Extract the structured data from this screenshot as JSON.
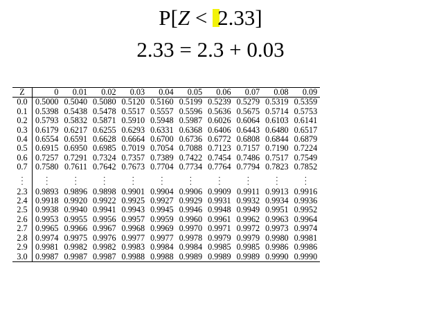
{
  "formula_line1": {
    "prefix": "P[",
    "variable": "Z",
    "operator": " < ",
    "value": "2.33",
    "suffix": "]"
  },
  "formula_line2": "2.33 = 2.3 + 0.03",
  "highlight_color": "#f2f20a",
  "table": {
    "header": [
      "Z",
      "0",
      "0.01",
      "0.02",
      "0.03",
      "0.04",
      "0.05",
      "0.06",
      "0.07",
      "0.08",
      "0.09"
    ],
    "rows_top": [
      [
        "0.0",
        "0.5000",
        "0.5040",
        "0.5080",
        "0.5120",
        "0.5160",
        "0.5199",
        "0.5239",
        "0.5279",
        "0.5319",
        "0.5359"
      ],
      [
        "0.1",
        "0.5398",
        "0.5438",
        "0.5478",
        "0.5517",
        "0.5557",
        "0.5596",
        "0.5636",
        "0.5675",
        "0.5714",
        "0.5753"
      ],
      [
        "0.2",
        "0.5793",
        "0.5832",
        "0.5871",
        "0.5910",
        "0.5948",
        "0.5987",
        "0.6026",
        "0.6064",
        "0.6103",
        "0.6141"
      ],
      [
        "0.3",
        "0.6179",
        "0.6217",
        "0.6255",
        "0.6293",
        "0.6331",
        "0.6368",
        "0.6406",
        "0.6443",
        "0.6480",
        "0.6517"
      ],
      [
        "0.4",
        "0.6554",
        "0.6591",
        "0.6628",
        "0.6664",
        "0.6700",
        "0.6736",
        "0.6772",
        "0.6808",
        "0.6844",
        "0.6879"
      ],
      [
        "0.5",
        "0.6915",
        "0.6950",
        "0.6985",
        "0.7019",
        "0.7054",
        "0.7088",
        "0.7123",
        "0.7157",
        "0.7190",
        "0.7224"
      ],
      [
        "0.6",
        "0.7257",
        "0.7291",
        "0.7324",
        "0.7357",
        "0.7389",
        "0.7422",
        "0.7454",
        "0.7486",
        "0.7517",
        "0.7549"
      ],
      [
        "0.7",
        "0.7580",
        "0.7611",
        "0.7642",
        "0.7673",
        "0.7704",
        "0.7734",
        "0.7764",
        "0.7794",
        "0.7823",
        "0.7852"
      ]
    ],
    "rows_bottom": [
      [
        "2.3",
        "0.9893",
        "0.9896",
        "0.9898",
        "0.9901",
        "0.9904",
        "0.9906",
        "0.9909",
        "0.9911",
        "0.9913",
        "0.9916"
      ],
      [
        "2.4",
        "0.9918",
        "0.9920",
        "0.9922",
        "0.9925",
        "0.9927",
        "0.9929",
        "0.9931",
        "0.9932",
        "0.9934",
        "0.9936"
      ],
      [
        "2.5",
        "0.9938",
        "0.9940",
        "0.9941",
        "0.9943",
        "0.9945",
        "0.9946",
        "0.9948",
        "0.9949",
        "0.9951",
        "0.9952"
      ],
      [
        "2.6",
        "0.9953",
        "0.9955",
        "0.9956",
        "0.9957",
        "0.9959",
        "0.9960",
        "0.9961",
        "0.9962",
        "0.9963",
        "0.9964"
      ],
      [
        "2.7",
        "0.9965",
        "0.9966",
        "0.9967",
        "0.9968",
        "0.9969",
        "0.9970",
        "0.9971",
        "0.9972",
        "0.9973",
        "0.9974"
      ],
      [
        "2.8",
        "0.9974",
        "0.9975",
        "0.9976",
        "0.9977",
        "0.9977",
        "0.9978",
        "0.9979",
        "0.9979",
        "0.9980",
        "0.9981"
      ],
      [
        "2.9",
        "0.9981",
        "0.9982",
        "0.9982",
        "0.9983",
        "0.9984",
        "0.9984",
        "0.9985",
        "0.9985",
        "0.9986",
        "0.9986"
      ],
      [
        "3.0",
        "0.9987",
        "0.9987",
        "0.9987",
        "0.9988",
        "0.9988",
        "0.9989",
        "0.9989",
        "0.9989",
        "0.9990",
        "0.9990"
      ]
    ]
  }
}
